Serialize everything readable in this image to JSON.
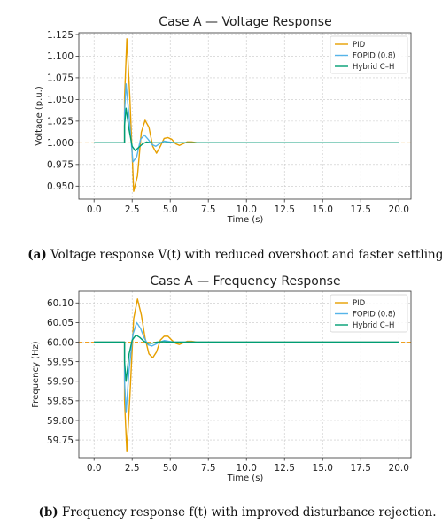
{
  "chart_data": [
    {
      "type": "line",
      "title": "Case A — Voltage Response",
      "xlabel": "Time (s)",
      "ylabel": "Voltage (p.u.)",
      "xlim": [
        -1,
        20.8
      ],
      "ylim": [
        0.935,
        1.127
      ],
      "xticks": [
        0.0,
        2.5,
        5.0,
        7.5,
        10.0,
        12.5,
        15.0,
        17.5,
        20.0
      ],
      "xtick_labels": [
        "0.0",
        "2.5",
        "5.0",
        "7.5",
        "10.0",
        "12.5",
        "15.0",
        "17.5",
        "20.0"
      ],
      "yticks": [
        0.95,
        0.975,
        1.0,
        1.025,
        1.05,
        1.075,
        1.1,
        1.125
      ],
      "ytick_labels": [
        "0.950",
        "0.975",
        "1.000",
        "1.025",
        "1.050",
        "1.075",
        "1.100",
        "1.125"
      ],
      "grid": true,
      "legend_position": "top-right",
      "reference": {
        "value": 1.0,
        "color": "#f0a020"
      },
      "series": [
        {
          "name": "PID",
          "color": "#e69f00",
          "x": [
            0,
            2.0,
            2.0,
            2.15,
            2.35,
            2.6,
            2.85,
            3.1,
            3.35,
            3.6,
            3.85,
            4.1,
            4.35,
            4.6,
            4.85,
            5.1,
            5.35,
            5.6,
            5.85,
            6.1,
            6.4,
            6.8,
            7.3,
            8,
            20
          ],
          "y": [
            1.0,
            1.0,
            1.052,
            1.12,
            1.052,
            0.944,
            0.962,
            1.012,
            1.026,
            1.018,
            0.996,
            0.988,
            0.996,
            1.005,
            1.006,
            1.004,
            0.999,
            0.997,
            0.999,
            1.001,
            1.001,
            1.0,
            1.0,
            1.0,
            1.0
          ]
        },
        {
          "name": "FOPID (0.8)",
          "color": "#56b4e9",
          "x": [
            0,
            2.0,
            2.0,
            2.1,
            2.3,
            2.55,
            2.8,
            3.05,
            3.3,
            3.55,
            3.8,
            4.05,
            4.3,
            4.6,
            4.9,
            5.3,
            5.8,
            6.5,
            20
          ],
          "y": [
            1.0,
            1.0,
            1.035,
            1.068,
            1.03,
            0.978,
            0.984,
            1.004,
            1.009,
            1.004,
            0.998,
            0.996,
            0.999,
            1.002,
            1.001,
            1.0,
            1.0,
            1.0,
            1.0
          ]
        },
        {
          "name": "Hybrid C–H",
          "color": "#009e73",
          "x": [
            0,
            2.0,
            2.0,
            2.1,
            2.3,
            2.5,
            2.7,
            2.95,
            3.2,
            3.45,
            3.7,
            4.0,
            4.4,
            4.9,
            5.5,
            20
          ],
          "y": [
            1.0,
            1.0,
            1.02,
            1.04,
            1.015,
            0.996,
            0.991,
            0.995,
            0.999,
            1.001,
            1.0,
            1.0,
            1.0,
            1.0,
            1.0,
            1.0
          ]
        }
      ]
    },
    {
      "type": "line",
      "title": "Case A — Frequency Response",
      "xlabel": "Time (s)",
      "ylabel": "Frequency (Hz)",
      "xlim": [
        -1,
        20.8
      ],
      "ylim": [
        59.705,
        60.13
      ],
      "xticks": [
        0.0,
        2.5,
        5.0,
        7.5,
        10.0,
        12.5,
        15.0,
        17.5,
        20.0
      ],
      "xtick_labels": [
        "0.0",
        "2.5",
        "5.0",
        "7.5",
        "10.0",
        "12.5",
        "15.0",
        "17.5",
        "20.0"
      ],
      "yticks": [
        59.75,
        59.8,
        59.85,
        59.9,
        59.95,
        60.0,
        60.05,
        60.1
      ],
      "ytick_labels": [
        "59.75",
        "59.80",
        "59.85",
        "59.90",
        "59.95",
        "60.00",
        "60.05",
        "60.10"
      ],
      "grid": true,
      "legend_position": "top-right",
      "reference": {
        "value": 60.0,
        "color": "#f0a020"
      },
      "series": [
        {
          "name": "PID",
          "color": "#e69f00",
          "x": [
            0,
            2.0,
            2.0,
            2.15,
            2.35,
            2.6,
            2.85,
            3.1,
            3.35,
            3.6,
            3.85,
            4.1,
            4.35,
            4.6,
            4.85,
            5.1,
            5.35,
            5.6,
            5.85,
            6.1,
            6.4,
            6.8,
            7.3,
            8,
            20
          ],
          "y": [
            60.0,
            60.0,
            59.85,
            59.72,
            59.86,
            60.06,
            60.11,
            60.07,
            60.01,
            59.97,
            59.96,
            59.975,
            60.005,
            60.015,
            60.015,
            60.005,
            59.997,
            59.994,
            59.998,
            60.002,
            60.002,
            60.0,
            60.0,
            60.0,
            60.0
          ]
        },
        {
          "name": "FOPID (0.8)",
          "color": "#56b4e9",
          "x": [
            0,
            2.0,
            2.0,
            2.1,
            2.3,
            2.55,
            2.8,
            3.05,
            3.3,
            3.55,
            3.8,
            4.05,
            4.3,
            4.6,
            4.9,
            5.3,
            5.8,
            6.5,
            20
          ],
          "y": [
            60.0,
            60.0,
            59.9,
            59.82,
            59.93,
            60.02,
            60.05,
            60.035,
            60.01,
            59.993,
            59.99,
            59.995,
            60.0,
            60.004,
            60.002,
            60.0,
            60.0,
            60.0,
            60.0
          ]
        },
        {
          "name": "Hybrid C–H",
          "color": "#009e73",
          "x": [
            0,
            2.0,
            2.0,
            2.1,
            2.3,
            2.5,
            2.75,
            3.0,
            3.25,
            3.5,
            3.8,
            4.1,
            4.5,
            5.0,
            5.6,
            20
          ],
          "y": [
            60.0,
            60.0,
            59.95,
            59.9,
            59.97,
            60.005,
            60.018,
            60.012,
            60.003,
            59.997,
            59.997,
            60.0,
            60.001,
            60.0,
            60.0,
            60.0
          ]
        }
      ]
    }
  ],
  "captions": [
    {
      "label": "(a)",
      "text": " Voltage response V(t) with reduced overshoot and faster settling."
    },
    {
      "label": "(b)",
      "text": " Frequency response f(t) with improved disturbance rejection."
    }
  ]
}
